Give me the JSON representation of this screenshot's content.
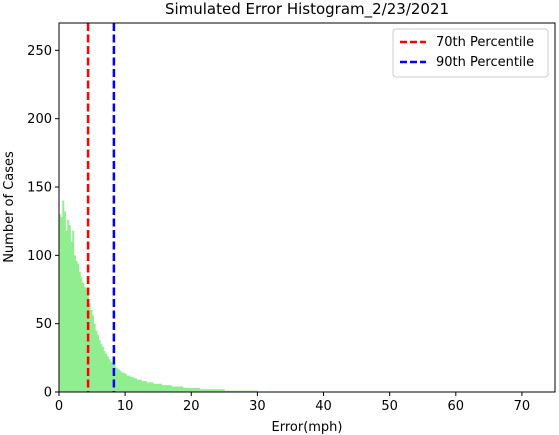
{
  "chart_data": {
    "type": "bar",
    "title": "Simulated Error Histogram_2/23/2021",
    "xlabel": "Error(mph)",
    "ylabel": "Number of Cases",
    "xlim": [
      0,
      75
    ],
    "ylim": [
      0,
      270
    ],
    "xticks": [
      0,
      10,
      20,
      30,
      40,
      50,
      60,
      70
    ],
    "yticks": [
      0,
      50,
      100,
      150,
      200,
      250
    ],
    "grid": false,
    "bar_color": "#90ee90",
    "bin_width": 0.25,
    "bin_start": 0,
    "counts": [
      130,
      128,
      140,
      132,
      118,
      126,
      122,
      110,
      118,
      100,
      96,
      94,
      88,
      84,
      80,
      77,
      76,
      70,
      65,
      60,
      56,
      50,
      45,
      42,
      38,
      35,
      33,
      30,
      28,
      26,
      24,
      22,
      21,
      20,
      18,
      17,
      16,
      15,
      14,
      14,
      13,
      12,
      12,
      11,
      11,
      10,
      10,
      9,
      9,
      9,
      8,
      8,
      8,
      7,
      7,
      7,
      7,
      6,
      6,
      6,
      6,
      6,
      5,
      5,
      5,
      5,
      5,
      5,
      4,
      4,
      4,
      4,
      4,
      4,
      4,
      3,
      3,
      3,
      3,
      3,
      3,
      3,
      3,
      3,
      3,
      2,
      2,
      2,
      2,
      2,
      2,
      2,
      2,
      2,
      2,
      2,
      2,
      2,
      2,
      2,
      1,
      1,
      1,
      1,
      1,
      1,
      1,
      1,
      1,
      1,
      1,
      1,
      1,
      1,
      1,
      1,
      1,
      1,
      1,
      1
    ],
    "reference_lines": [
      {
        "name": "70th Percentile",
        "x": 4.4,
        "color": "#ff0000",
        "style": "dashed"
      },
      {
        "name": "90th Percentile",
        "x": 8.3,
        "color": "#0000ff",
        "style": "dashed"
      }
    ],
    "legend_position": "top-right"
  }
}
